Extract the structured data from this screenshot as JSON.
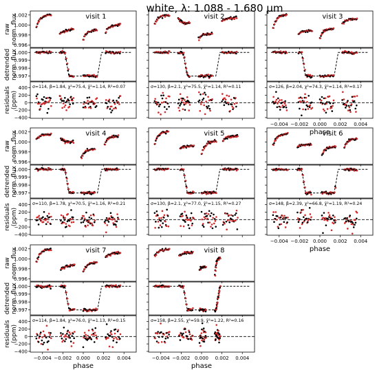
{
  "figure": {
    "title": "white,   λ: 1.088 - 1.680 μm",
    "row_labels": {
      "raw": [
        "raw",
        "norm. flux"
      ],
      "detrended": [
        "detrended",
        "norm. flux"
      ],
      "residuals": [
        "residuals",
        "(ppm)"
      ]
    },
    "xlabel": "phase",
    "colors": {
      "data_a": "#000000",
      "data_b": "#d62728",
      "model": "#000000"
    }
  },
  "chart_data": {
    "type": "scatter",
    "xlim": [
      -0.0052,
      0.0052
    ],
    "x_ticks": [
      -0.004,
      -0.002,
      0.0,
      0.002,
      0.004
    ],
    "x_tick_labels": [
      "−0.004",
      "−0.002",
      "0.000",
      "0.002",
      "0.004"
    ],
    "raw": {
      "ylim": [
        0.9955,
        1.0028
      ],
      "ticks": [
        0.996,
        0.998,
        1.0,
        1.002
      ],
      "tick_labels": [
        "0.996",
        "0.998",
        "1.000",
        "1.002"
      ]
    },
    "detrended": {
      "ylim": [
        0.99635,
        1.00055
      ],
      "ticks": [
        0.997,
        0.998,
        0.999,
        1.0
      ],
      "tick_labels": [
        "0.997",
        "0.998",
        "0.999",
        "1.000"
      ]
    },
    "residuals": {
      "ylim": [
        -420,
        560
      ],
      "ticks": [
        -400,
        -200,
        0,
        200,
        400
      ],
      "tick_labels": [
        "−400",
        "−200",
        "0",
        "200",
        "400"
      ]
    },
    "transit_model": {
      "baseline": 1.0,
      "depth": 0.003,
      "t1": -0.0018,
      "t2": -0.0014,
      "t3": 0.0014,
      "t4": 0.0018
    },
    "visits": [
      {
        "label": "visit 1",
        "stats": "σ=114, β=1.84, χ²=75.4, χ̄²=1.14, R²=0.07",
        "orbits": [
          {
            "t": [
              -0.0046,
              -0.0032
            ],
            "f": [
              0.9996,
              1.0021
            ]
          },
          {
            "t": [
              -0.0023,
              -0.001
            ],
            "f": [
              0.9981,
              0.9991
            ]
          },
          {
            "t": [
              0.0,
              0.0013
            ],
            "f": [
              0.9972,
              0.999
            ]
          },
          {
            "t": [
              0.0022,
              0.0036
            ],
            "f": [
              0.9986,
              1.0001
            ]
          }
        ]
      },
      {
        "label": "visit 2",
        "stats": "σ=130, β=2.1, χ²=75.5, χ̄²=1.14, R²=0.11",
        "orbits": [
          {
            "t": [
              -0.0046,
              -0.0032
            ],
            "f": [
              1.0003,
              1.002
            ]
          },
          {
            "t": [
              -0.0023,
              -0.0012
            ],
            "f": [
              1.0014,
              1.0003
            ]
          },
          {
            "t": [
              -0.0003,
              0.001
            ],
            "f": [
              0.9972,
              0.9983
            ]
          },
          {
            "t": [
              0.002,
              0.0034
            ],
            "f": [
              1.0008,
              1.0014
            ]
          }
        ]
      },
      {
        "label": "visit 3",
        "stats": "σ=126, β=2.04, χ²=74.3, χ̄²=1.14, R²=0.17",
        "orbits": [
          {
            "t": [
              -0.0046,
              -0.0033
            ],
            "f": [
              0.9993,
              1.0021
            ]
          },
          {
            "t": [
              -0.0021,
              -0.0008
            ],
            "f": [
              0.9982,
              0.9989
            ]
          },
          {
            "t": [
              0.0,
              0.0013
            ],
            "f": [
              0.9974,
              0.9993
            ]
          },
          {
            "t": [
              0.0022,
              0.0036
            ],
            "f": [
              1.0002,
              1.0012
            ]
          }
        ]
      },
      {
        "label": "visit 4",
        "stats": "σ=110, β=1.78, χ²=70.5, χ̄²=1.16, R²=0.21",
        "orbits": [
          {
            "t": [
              -0.0046,
              -0.0032
            ],
            "f": [
              1.0006,
              1.0015
            ]
          },
          {
            "t": [
              -0.0022,
              -0.001
            ],
            "f": [
              1.0007,
              1.0
            ]
          },
          {
            "t": [
              -0.0002,
              0.0011
            ],
            "f": [
              0.9968,
              0.9985
            ]
          },
          {
            "t": [
              0.0021,
              0.0034
            ],
            "f": [
              0.9996,
              1.0012
            ]
          }
        ]
      },
      {
        "label": "visit 5",
        "stats": "σ=130, β=2.1, χ²=77.0, χ̄²=1.15, R²=0.27",
        "orbits": [
          {
            "t": [
              -0.0046,
              -0.0033
            ],
            "f": [
              0.9996,
              1.0021
            ]
          },
          {
            "t": [
              -0.0021,
              -0.0008
            ],
            "f": [
              0.9986,
              0.9992
            ]
          },
          {
            "t": [
              0.0,
              0.0014
            ],
            "f": [
              0.9977,
              1.0002
            ]
          },
          {
            "t": [
              0.0021,
              0.0035
            ],
            "f": [
              1.0004,
              1.0012
            ]
          }
        ]
      },
      {
        "label": "visit 6",
        "stats": "σ=148, β=2.39, χ²=66.8, χ̄²=1.19, R²=0.24",
        "orbits": [
          {
            "t": [
              -0.0046,
              -0.0032
            ],
            "f": [
              0.9994,
              1.0016
            ]
          },
          {
            "t": [
              -0.0022,
              -0.0009
            ],
            "f": [
              0.999,
              0.9995
            ]
          },
          {
            "t": [
              0.0002,
              0.0015
            ],
            "f": [
              0.9975,
              0.999
            ]
          },
          {
            "t": [
              0.0024,
              0.0036
            ],
            "f": [
              0.999,
              1.0006
            ]
          }
        ]
      },
      {
        "label": "visit 7",
        "stats": "σ=114, β=1.84, χ²=76.0, χ̄²=1.13, R²=0.15",
        "orbits": [
          {
            "t": [
              -0.0046,
              -0.0032
            ],
            "f": [
              0.9994,
              1.0019
            ]
          },
          {
            "t": [
              -0.0022,
              -0.0009
            ],
            "f": [
              0.9978,
              0.9987
            ]
          },
          {
            "t": [
              0.0,
              0.0013
            ],
            "f": [
              0.9975,
              0.9993
            ]
          },
          {
            "t": [
              0.0022,
              0.0036
            ],
            "f": [
              1.0004,
              1.0012
            ]
          }
        ]
      },
      {
        "label": "visit 8",
        "stats": "σ=158, β=2.55, χ²=59.9, χ̄²=1.22, R²=0.16",
        "orbits": [
          {
            "t": [
              -0.0046,
              -0.0032
            ],
            "f": [
              1.0006,
              1.0019
            ]
          },
          {
            "t": [
              -0.0022,
              -0.0009
            ],
            "f": [
              1.0005,
              1.0013
            ]
          },
          {
            "t": [
              -0.0002,
              0.0004
            ],
            "f": [
              0.9978,
              0.9984
            ]
          },
          {
            "t": [
              0.0013,
              0.0018
            ],
            "f": [
              0.9966,
              1.0003
            ]
          }
        ]
      }
    ]
  }
}
